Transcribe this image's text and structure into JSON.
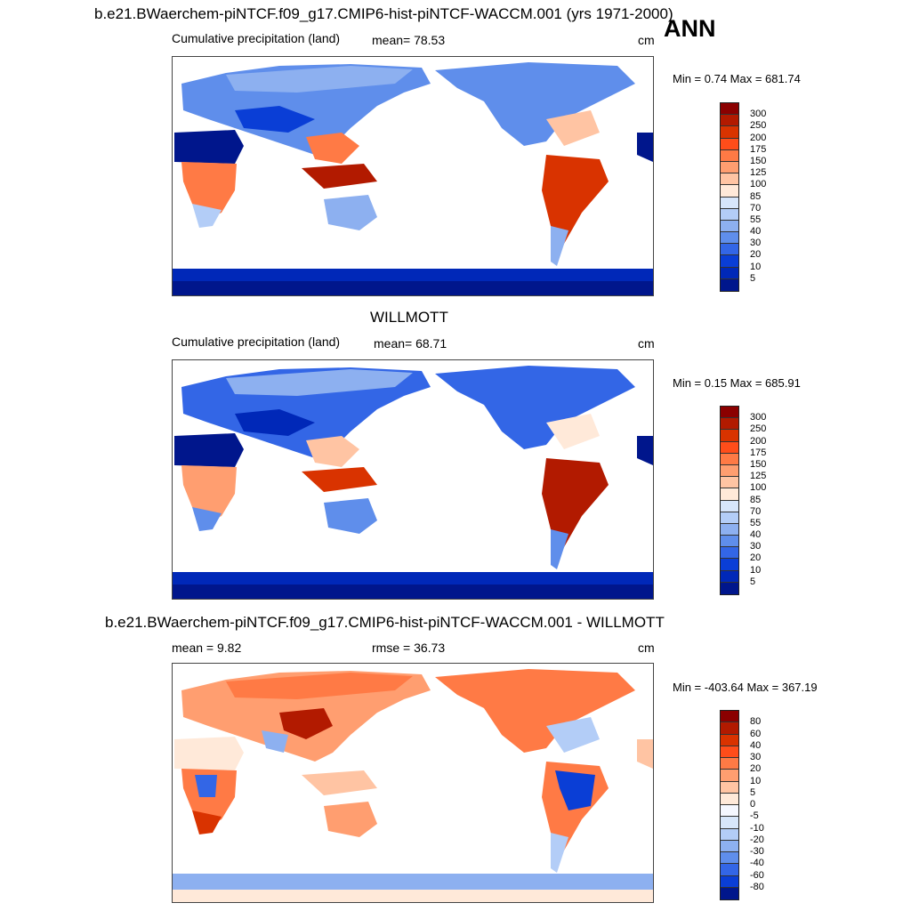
{
  "season": "ANN",
  "title_top": "b.e21.BWaerchem-piNTCF.f09_g17.CMIP6-hist-piNTCF-WACCM.001 (yrs 1971-2000)",
  "title_mid": "WILLMOTT",
  "title_diff": "b.e21.BWaerchem-piNTCF.f09_g17.CMIP6-hist-piNTCF-WACCM.001 - WILLMOTT",
  "panels": [
    {
      "left_label": "Cumulative precipitation (land)",
      "center_label": "mean=  78.53",
      "units": "cm",
      "minmax": "Min =   0.74 Max = 681.74",
      "colorbar": {
        "labels": [
          "300",
          "250",
          "200",
          "175",
          "150",
          "125",
          "100",
          "85",
          "70",
          "55",
          "40",
          "30",
          "20",
          "10",
          "5"
        ],
        "colors": [
          "#8b0000",
          "#b21a00",
          "#d93300",
          "#ff4d1a",
          "#ff7a45",
          "#ff9e70",
          "#ffc4a3",
          "#ffe9d9",
          "#d7e6fb",
          "#b3cdf7",
          "#8db0f0",
          "#5f8eeb",
          "#3366e6",
          "#0a3ed6",
          "#0028b8",
          "#00168c"
        ]
      }
    },
    {
      "left_label": "Cumulative precipitation (land)",
      "center_label": "mean=  68.71",
      "units": "cm",
      "minmax": "Min =   0.15 Max = 685.91",
      "colorbar": {
        "labels": [
          "300",
          "250",
          "200",
          "175",
          "150",
          "125",
          "100",
          "85",
          "70",
          "55",
          "40",
          "30",
          "20",
          "10",
          "5"
        ],
        "colors": [
          "#8b0000",
          "#b21a00",
          "#d93300",
          "#ff4d1a",
          "#ff7a45",
          "#ff9e70",
          "#ffc4a3",
          "#ffe9d9",
          "#d7e6fb",
          "#b3cdf7",
          "#8db0f0",
          "#5f8eeb",
          "#3366e6",
          "#0a3ed6",
          "#0028b8",
          "#00168c"
        ]
      }
    },
    {
      "left_label": "mean =   9.82",
      "center_label": "rmse =  36.73",
      "units": "cm",
      "minmax": "Min = -403.64 Max = 367.19",
      "colorbar": {
        "labels": [
          "80",
          "60",
          "40",
          "30",
          "20",
          "10",
          "5",
          "0",
          "-5",
          "-10",
          "-20",
          "-30",
          "-40",
          "-60",
          "-80"
        ],
        "colors": [
          "#8b0000",
          "#b21a00",
          "#d93300",
          "#ff4d1a",
          "#ff7a45",
          "#ff9e70",
          "#ffc4a3",
          "#ffe9d9",
          "#f5f7ff",
          "#d7e6fb",
          "#b3cdf7",
          "#8db0f0",
          "#5f8eeb",
          "#3366e6",
          "#0a3ed6",
          "#00168c"
        ]
      }
    }
  ]
}
